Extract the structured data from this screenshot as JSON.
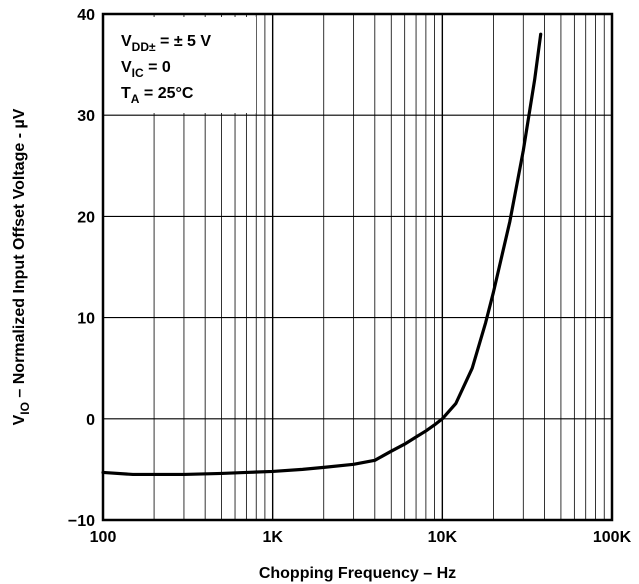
{
  "chart_data": {
    "type": "line",
    "xscale": "log",
    "xlim": [
      100,
      100000
    ],
    "ylim": [
      -10,
      40
    ],
    "grid": true,
    "xlabel": "Chopping Frequency – Hz",
    "ylabel": {
      "main": "V",
      "sub": "IO",
      "rest": " – Normalized Input Offset Voltage - µV"
    },
    "x_ticks": [
      {
        "value": 100,
        "label": "100"
      },
      {
        "value": 1000,
        "label": "1K"
      },
      {
        "value": 10000,
        "label": "10K"
      },
      {
        "value": 100000,
        "label": "100K"
      }
    ],
    "y_ticks": [
      {
        "value": -10,
        "label": "−10"
      },
      {
        "value": 0,
        "label": "0"
      },
      {
        "value": 10,
        "label": "10"
      },
      {
        "value": 20,
        "label": "20"
      },
      {
        "value": 30,
        "label": "30"
      },
      {
        "value": 40,
        "label": "40"
      }
    ],
    "annotations": {
      "line1": {
        "main": "V",
        "sub": "DD±",
        "rest": " = ± 5 V"
      },
      "line2": {
        "main": "V",
        "sub": "IC",
        "rest": " = 0"
      },
      "line3": {
        "main": "T",
        "sub": "A",
        "rest": " = 25°C"
      }
    },
    "series": [
      {
        "x": [
          100,
          150,
          200,
          300,
          500,
          700,
          1000,
          1500,
          2000,
          3000,
          4000,
          5000,
          6000,
          7000,
          8000,
          9000,
          10000,
          12000,
          15000,
          18000,
          20000,
          25000,
          30000,
          35000,
          38000
        ],
        "y": [
          -5.3,
          -5.5,
          -5.5,
          -5.5,
          -5.4,
          -5.3,
          -5.2,
          -5.0,
          -4.8,
          -4.5,
          -4.1,
          -3.2,
          -2.5,
          -1.8,
          -1.2,
          -0.6,
          0.0,
          1.5,
          5.0,
          9.5,
          12.5,
          19.5,
          26.5,
          33.5,
          38.0
        ]
      }
    ]
  }
}
